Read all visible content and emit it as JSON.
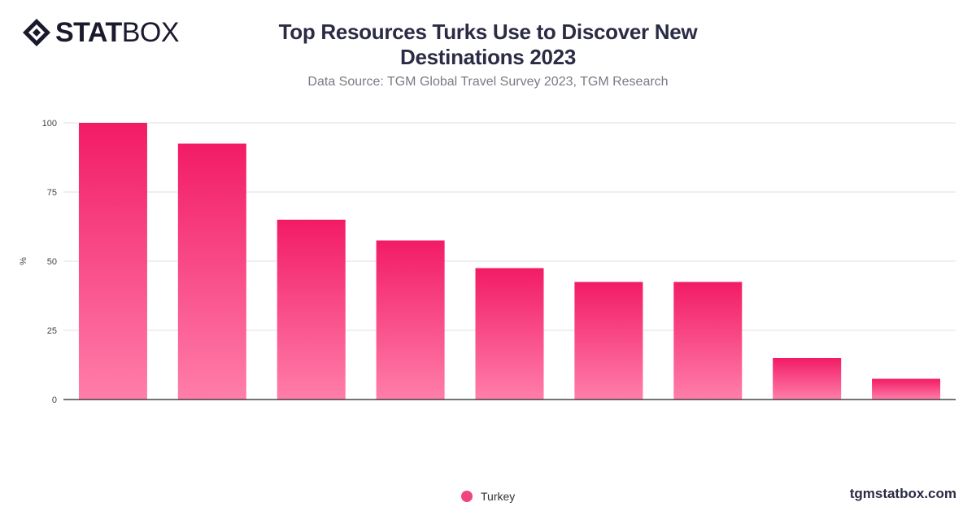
{
  "brand": {
    "logo_bold": "STAT",
    "logo_light": "BOX",
    "website": "tgmstatbox.com"
  },
  "header": {
    "title_line1": "Top Resources Turks Use to Discover New",
    "title_line2": "Destinations 2023",
    "subtitle": "Data Source: TGM Global Travel Survey 2023, TGM Research"
  },
  "colors": {
    "bar_top": "#f21b66",
    "bar_bottom": "#ff7eaa",
    "grid": "#e2e2e6",
    "axis": "#222222"
  },
  "chart_data": {
    "type": "bar",
    "categories": [
      "",
      "",
      "",
      "",
      "",
      "",
      "",
      "",
      ""
    ],
    "series": [
      {
        "name": "Turkey",
        "values": [
          100,
          92.5,
          65,
          57.5,
          47.5,
          42.5,
          42.5,
          15,
          7.5
        ]
      }
    ],
    "ylabel": "%",
    "ylim": [
      0,
      100
    ],
    "yticks": [
      "0",
      "25",
      "50",
      "75",
      "100"
    ],
    "grid": true,
    "legend": "bottom-center"
  }
}
